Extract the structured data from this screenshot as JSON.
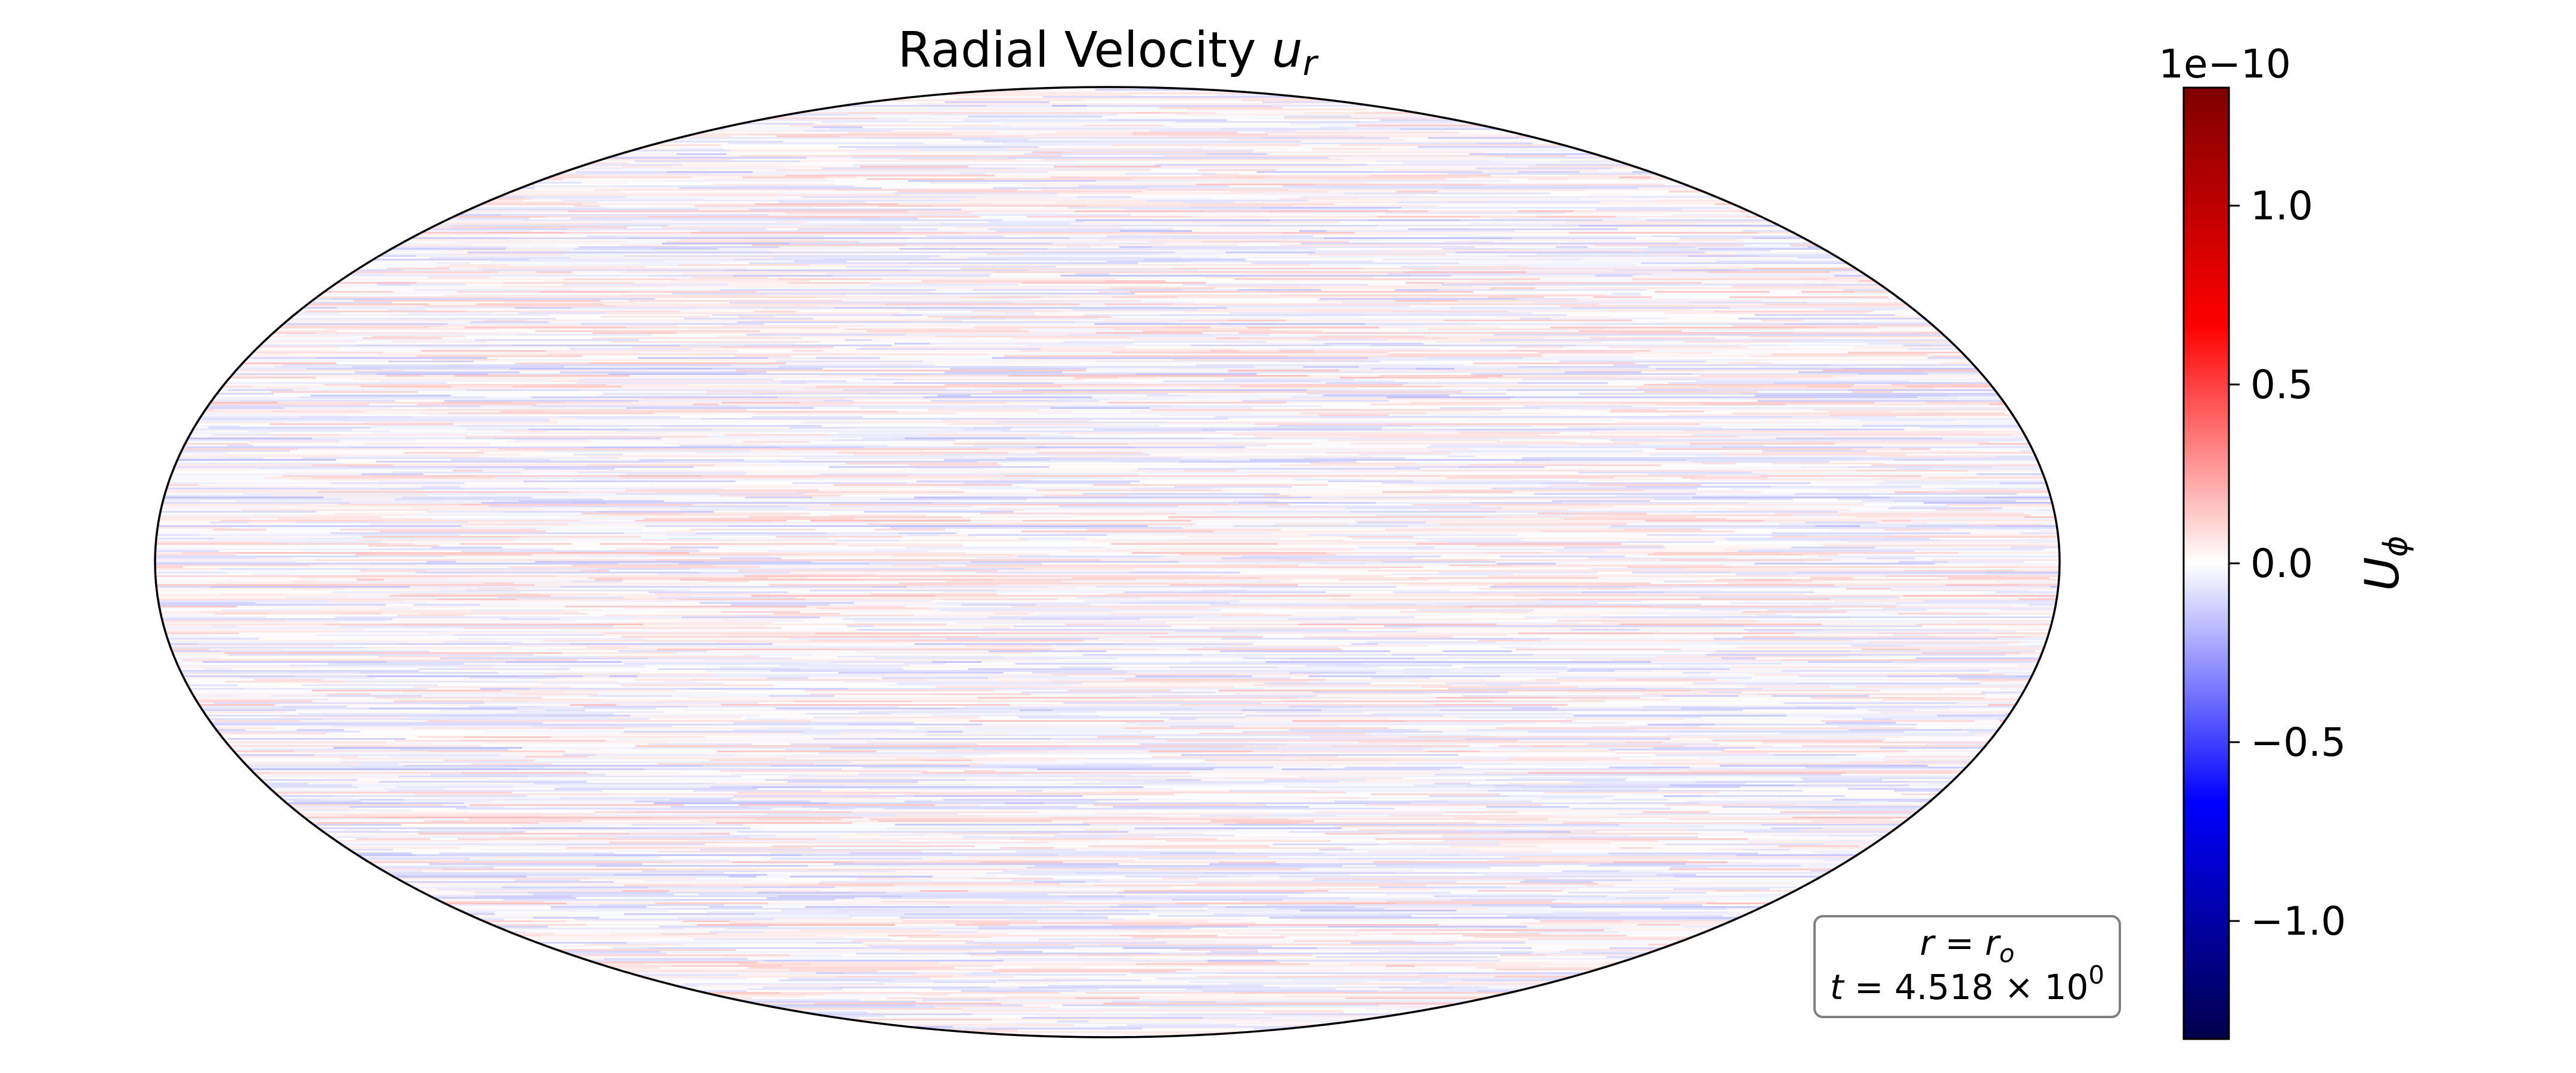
{
  "chart_data": {
    "type": "heatmap",
    "projection": "mollweide",
    "title": "Radial Velocity",
    "title_symbol": "u",
    "title_subscript": "r",
    "colormap": "seismic",
    "colormap_stops": [
      "#00004c",
      "#0000ff",
      "#ffffff",
      "#ff0000",
      "#7f0000"
    ],
    "colorbar": {
      "label_symbol": "U",
      "label_subscript": "ϕ",
      "offset_text": "1e−10",
      "vmin": -1.33,
      "vmax": 1.33,
      "scale": 1e-10,
      "ticks": [
        {
          "value": 1.0,
          "label": "1.0"
        },
        {
          "value": 0.5,
          "label": "0.5"
        },
        {
          "value": 0.0,
          "label": "0.0"
        },
        {
          "value": -0.5,
          "label": "−0.5"
        },
        {
          "value": -1.0,
          "label": "−1.0"
        }
      ]
    },
    "field_description_range": [
      -0.15,
      0.15
    ],
    "annotation": {
      "line1_lhs": "r",
      "line1_rhs": "r",
      "line1_rhs_sub": "o",
      "line2_lhs": "t",
      "line2_value": "4.518 × 10",
      "line2_exponent": "0"
    },
    "grid": false
  }
}
